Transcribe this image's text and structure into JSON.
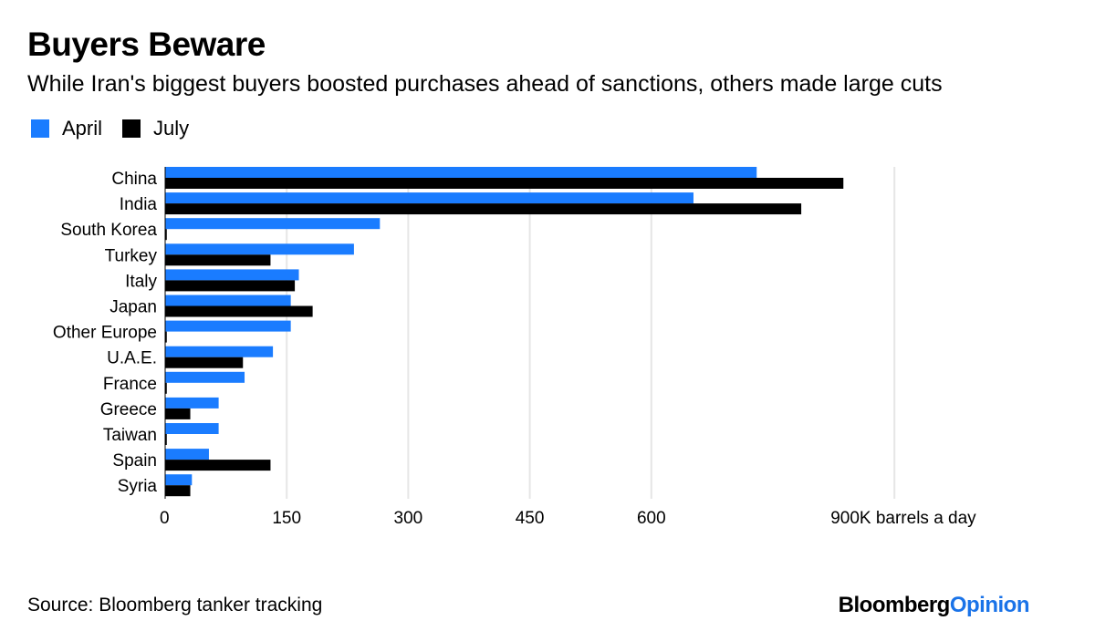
{
  "header": {
    "title": "Buyers Beware",
    "subtitle": "While Iran's biggest buyers boosted purchases ahead of sanctions, others made large cuts"
  },
  "legend": [
    {
      "label": "April",
      "color": "#1a7cff"
    },
    {
      "label": "July",
      "color": "#000000"
    }
  ],
  "footer": {
    "source": "Source: Bloomberg tanker tracking",
    "brand_part1": "Bloomberg",
    "brand_part2": "Opinion"
  },
  "chart_data": {
    "type": "bar",
    "orientation": "horizontal",
    "categories": [
      "China",
      "India",
      "South Korea",
      "Turkey",
      "Italy",
      "Japan",
      "Other Europe",
      "U.A.E.",
      "France",
      "Greece",
      "Taiwan",
      "Spain",
      "Syria"
    ],
    "series": [
      {
        "name": "April",
        "color": "#1a7cff",
        "values": [
          730,
          652,
          265,
          233,
          165,
          155,
          155,
          133,
          98,
          66,
          66,
          54,
          33
        ]
      },
      {
        "name": "July",
        "color": "#000000",
        "values": [
          837,
          785,
          2,
          130,
          160,
          182,
          2,
          96,
          2,
          31,
          2,
          130,
          31
        ]
      }
    ],
    "x_ticks": [
      "0",
      "150",
      "300",
      "450",
      "600",
      "900K barrels a day"
    ],
    "x_tick_values": [
      0,
      150,
      300,
      450,
      600,
      900
    ],
    "xlim": [
      0,
      900
    ],
    "grid": true
  }
}
